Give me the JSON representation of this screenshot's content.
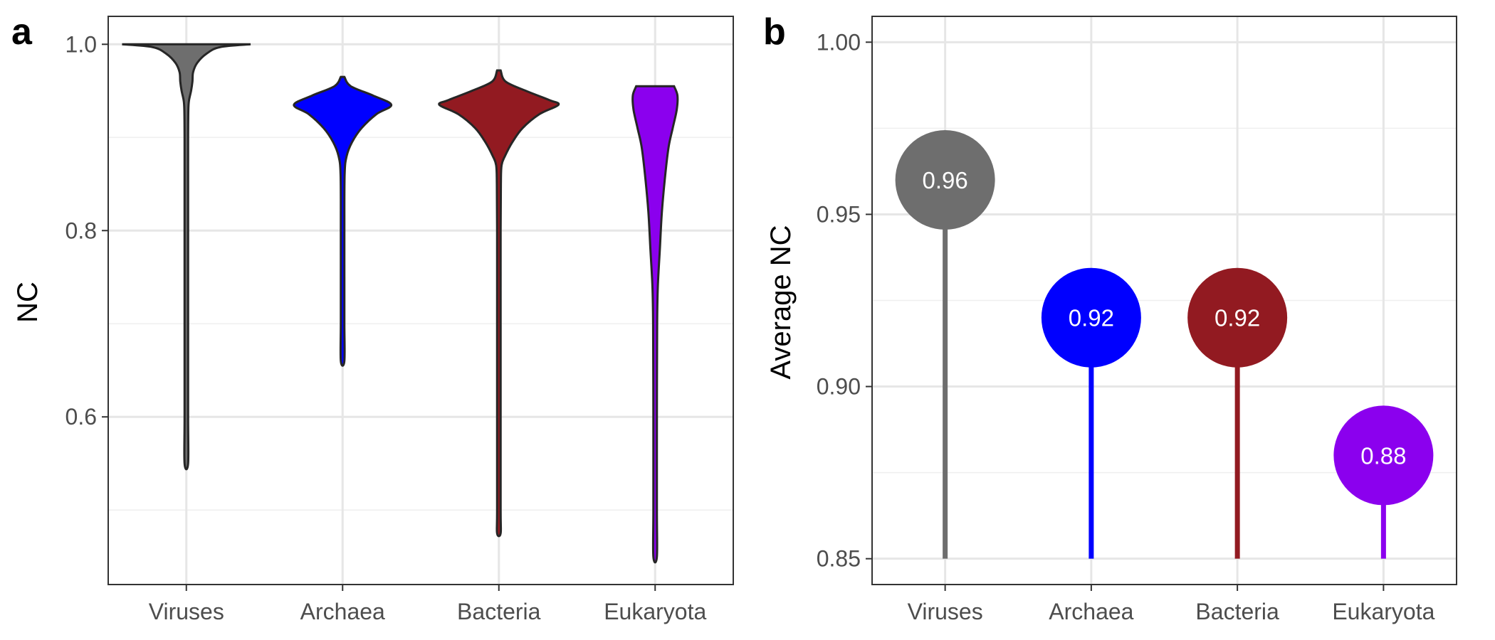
{
  "chart_data": [
    {
      "panel": "a",
      "type": "violin",
      "title": "",
      "xlabel": "",
      "ylabel": "NC",
      "ylim": [
        0.42,
        1.03
      ],
      "yticks": [
        0.6,
        0.8,
        1.0
      ],
      "ytick_labels": [
        "0.6",
        "0.8",
        "1.0"
      ],
      "grid": true,
      "categories": [
        "Viruses",
        "Archaea",
        "Bacteria",
        "Eukaryota"
      ],
      "colors": [
        "#6e6e6e",
        "#0000ff",
        "#921a21",
        "#8b00ee"
      ],
      "series": [
        {
          "category": "Viruses",
          "min": 0.55,
          "max": 1.0,
          "profile": [
            [
              1.0,
              0.95
            ],
            [
              0.997,
              0.5
            ],
            [
              0.99,
              0.3
            ],
            [
              0.98,
              0.16
            ],
            [
              0.97,
              0.1
            ],
            [
              0.96,
              0.09
            ],
            [
              0.95,
              0.07
            ],
            [
              0.94,
              0.04
            ],
            [
              0.93,
              0.03
            ],
            [
              0.9,
              0.02
            ],
            [
              0.85,
              0.02
            ],
            [
              0.8,
              0.015
            ],
            [
              0.7,
              0.015
            ],
            [
              0.6,
              0.01
            ],
            [
              0.55,
              0.0
            ]
          ]
        },
        {
          "category": "Archaea",
          "min": 0.66,
          "max": 0.965,
          "profile": [
            [
              0.965,
              0.0
            ],
            [
              0.955,
              0.12
            ],
            [
              0.945,
              0.45
            ],
            [
              0.935,
              0.72
            ],
            [
              0.925,
              0.5
            ],
            [
              0.91,
              0.28
            ],
            [
              0.895,
              0.14
            ],
            [
              0.88,
              0.06
            ],
            [
              0.86,
              0.03
            ],
            [
              0.8,
              0.02
            ],
            [
              0.75,
              0.015
            ],
            [
              0.7,
              0.01
            ],
            [
              0.66,
              0.0
            ]
          ]
        },
        {
          "category": "Bacteria",
          "min": 0.475,
          "max": 0.972,
          "profile": [
            [
              0.972,
              0.0
            ],
            [
              0.96,
              0.1
            ],
            [
              0.95,
              0.4
            ],
            [
              0.94,
              0.75
            ],
            [
              0.935,
              0.88
            ],
            [
              0.925,
              0.6
            ],
            [
              0.91,
              0.35
            ],
            [
              0.895,
              0.2
            ],
            [
              0.88,
              0.09
            ],
            [
              0.87,
              0.04
            ],
            [
              0.85,
              0.03
            ],
            [
              0.8,
              0.02
            ],
            [
              0.7,
              0.02
            ],
            [
              0.6,
              0.015
            ],
            [
              0.5,
              0.01
            ],
            [
              0.475,
              0.0
            ]
          ]
        },
        {
          "category": "Eukaryota",
          "min": 0.45,
          "max": 0.955,
          "profile": [
            [
              0.955,
              0.28
            ],
            [
              0.945,
              0.33
            ],
            [
              0.93,
              0.32
            ],
            [
              0.91,
              0.26
            ],
            [
              0.89,
              0.2
            ],
            [
              0.86,
              0.15
            ],
            [
              0.82,
              0.1
            ],
            [
              0.78,
              0.07
            ],
            [
              0.74,
              0.04
            ],
            [
              0.7,
              0.03
            ],
            [
              0.6,
              0.02
            ],
            [
              0.5,
              0.012
            ],
            [
              0.45,
              0.0
            ]
          ]
        }
      ]
    },
    {
      "panel": "b",
      "type": "lollipop",
      "title": "",
      "xlabel": "",
      "ylabel": "Average NC",
      "ylim": [
        0.8425,
        1.0075
      ],
      "yticks": [
        0.85,
        0.9,
        0.95,
        1.0
      ],
      "ytick_labels": [
        "0.85",
        "0.90",
        "0.95",
        "1.00"
      ],
      "grid": true,
      "baseline": 0.85,
      "categories": [
        "Viruses",
        "Archaea",
        "Bacteria",
        "Eukaryota"
      ],
      "values": [
        0.96,
        0.92,
        0.92,
        0.88
      ],
      "value_labels": [
        "0.96",
        "0.92",
        "0.92",
        "0.88"
      ],
      "colors": [
        "#6e6e6e",
        "#0000ff",
        "#921a21",
        "#8b00ee"
      ]
    }
  ]
}
